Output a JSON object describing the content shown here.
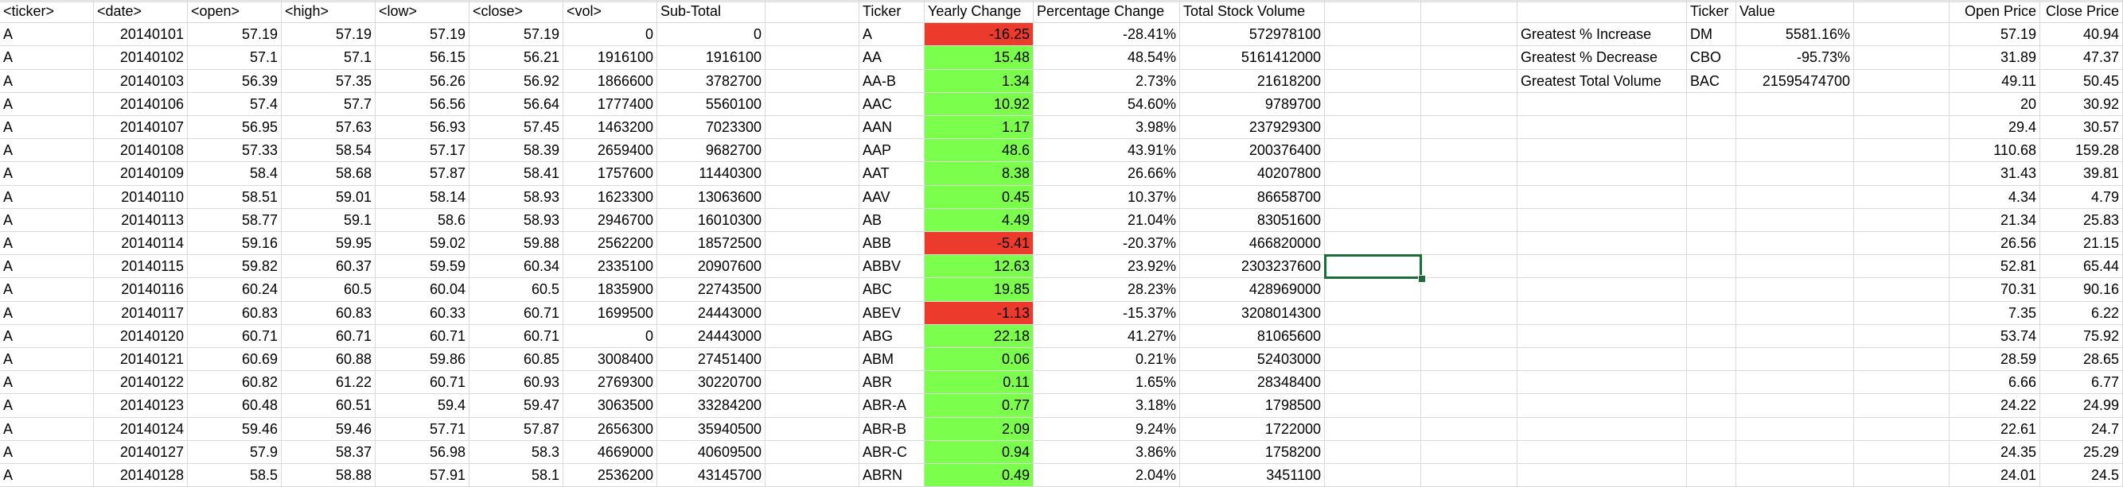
{
  "sheet": {
    "raw_headers": [
      "<ticker>",
      "<date>",
      "<open>",
      "<high>",
      "<low>",
      "<close>",
      "<vol>",
      "Sub-Total"
    ],
    "raw_rows": [
      [
        "A",
        "20140101",
        "57.19",
        "57.19",
        "57.19",
        "57.19",
        "0",
        "0"
      ],
      [
        "A",
        "20140102",
        "57.1",
        "57.1",
        "56.15",
        "56.21",
        "1916100",
        "1916100"
      ],
      [
        "A",
        "20140103",
        "56.39",
        "57.35",
        "56.26",
        "56.92",
        "1866600",
        "3782700"
      ],
      [
        "A",
        "20140106",
        "57.4",
        "57.7",
        "56.56",
        "56.64",
        "1777400",
        "5560100"
      ],
      [
        "A",
        "20140107",
        "56.95",
        "57.63",
        "56.93",
        "57.45",
        "1463200",
        "7023300"
      ],
      [
        "A",
        "20140108",
        "57.33",
        "58.54",
        "57.17",
        "58.39",
        "2659400",
        "9682700"
      ],
      [
        "A",
        "20140109",
        "58.4",
        "58.68",
        "57.87",
        "58.41",
        "1757600",
        "11440300"
      ],
      [
        "A",
        "20140110",
        "58.51",
        "59.01",
        "58.14",
        "58.93",
        "1623300",
        "13063600"
      ],
      [
        "A",
        "20140113",
        "58.77",
        "59.1",
        "58.6",
        "58.93",
        "2946700",
        "16010300"
      ],
      [
        "A",
        "20140114",
        "59.16",
        "59.95",
        "59.02",
        "59.88",
        "2562200",
        "18572500"
      ],
      [
        "A",
        "20140115",
        "59.82",
        "60.37",
        "59.59",
        "60.34",
        "2335100",
        "20907600"
      ],
      [
        "A",
        "20140116",
        "60.24",
        "60.5",
        "60.04",
        "60.5",
        "1835900",
        "22743500"
      ],
      [
        "A",
        "20140117",
        "60.83",
        "60.83",
        "60.33",
        "60.71",
        "1699500",
        "24443000"
      ],
      [
        "A",
        "20140120",
        "60.71",
        "60.71",
        "60.71",
        "60.71",
        "0",
        "24443000"
      ],
      [
        "A",
        "20140121",
        "60.69",
        "60.88",
        "59.86",
        "60.85",
        "3008400",
        "27451400"
      ],
      [
        "A",
        "20140122",
        "60.82",
        "61.22",
        "60.71",
        "60.93",
        "2769300",
        "30220700"
      ],
      [
        "A",
        "20140123",
        "60.48",
        "60.51",
        "59.4",
        "59.47",
        "3063500",
        "33284200"
      ],
      [
        "A",
        "20140124",
        "59.46",
        "59.46",
        "57.71",
        "57.87",
        "2656300",
        "35940500"
      ],
      [
        "A",
        "20140127",
        "57.9",
        "58.37",
        "56.98",
        "58.3",
        "4669000",
        "40609500"
      ],
      [
        "A",
        "20140128",
        "58.5",
        "58.88",
        "57.91",
        "58.1",
        "2536200",
        "43145700"
      ]
    ],
    "summary_headers": [
      "Ticker",
      "Yearly Change",
      "Percentage Change",
      "Total Stock Volume"
    ],
    "summary_rows": [
      [
        "A",
        "-16.25",
        "-28.41%",
        "572978100"
      ],
      [
        "AA",
        "15.48",
        "48.54%",
        "5161412000"
      ],
      [
        "AA-B",
        "1.34",
        "2.73%",
        "21618200"
      ],
      [
        "AAC",
        "10.92",
        "54.60%",
        "9789700"
      ],
      [
        "AAN",
        "1.17",
        "3.98%",
        "237929300"
      ],
      [
        "AAP",
        "48.6",
        "43.91%",
        "200376400"
      ],
      [
        "AAT",
        "8.38",
        "26.66%",
        "40207800"
      ],
      [
        "AAV",
        "0.45",
        "10.37%",
        "86658700"
      ],
      [
        "AB",
        "4.49",
        "21.04%",
        "83051600"
      ],
      [
        "ABB",
        "-5.41",
        "-20.37%",
        "466820000"
      ],
      [
        "ABBV",
        "12.63",
        "23.92%",
        "2303237600"
      ],
      [
        "ABC",
        "19.85",
        "28.23%",
        "428969000"
      ],
      [
        "ABEV",
        "-1.13",
        "-15.37%",
        "3208014300"
      ],
      [
        "ABG",
        "22.18",
        "41.27%",
        "81065600"
      ],
      [
        "ABM",
        "0.06",
        "0.21%",
        "52403000"
      ],
      [
        "ABR",
        "0.11",
        "1.65%",
        "28348400"
      ],
      [
        "ABR-A",
        "0.77",
        "3.18%",
        "1798500"
      ],
      [
        "ABR-B",
        "2.09",
        "9.24%",
        "1722000"
      ],
      [
        "ABR-C",
        "0.94",
        "3.86%",
        "1758200"
      ],
      [
        "ABRN",
        "0.49",
        "2.04%",
        "3451100"
      ]
    ],
    "greatest_headers": [
      "Ticker",
      "Value"
    ],
    "greatest_rows": [
      [
        "Greatest % Increase",
        "DM",
        "5581.16%"
      ],
      [
        "Greatest % Decrease",
        "CBO",
        "-95.73%"
      ],
      [
        "Greatest Total Volume",
        "BAC",
        "21595474700"
      ]
    ],
    "price_headers": [
      "Open Price",
      "Close Price"
    ],
    "price_rows": [
      [
        "57.19",
        "40.94"
      ],
      [
        "31.89",
        "47.37"
      ],
      [
        "49.11",
        "50.45"
      ],
      [
        "20",
        "30.92"
      ],
      [
        "29.4",
        "30.57"
      ],
      [
        "110.68",
        "159.28"
      ],
      [
        "31.43",
        "39.81"
      ],
      [
        "4.34",
        "4.79"
      ],
      [
        "21.34",
        "25.83"
      ],
      [
        "26.56",
        "21.15"
      ],
      [
        "52.81",
        "65.44"
      ],
      [
        "70.31",
        "90.16"
      ],
      [
        "7.35",
        "6.22"
      ],
      [
        "53.74",
        "75.92"
      ],
      [
        "28.59",
        "28.65"
      ],
      [
        "6.66",
        "6.77"
      ],
      [
        "24.22",
        "24.99"
      ],
      [
        "22.61",
        "24.7"
      ],
      [
        "24.35",
        "25.29"
      ],
      [
        "24.01",
        "24.5"
      ]
    ],
    "colors": {
      "positive": "#7bff4c",
      "negative": "#ec3a2c",
      "grid": "#d9d9d9",
      "selection": "#1f6b3a"
    }
  }
}
